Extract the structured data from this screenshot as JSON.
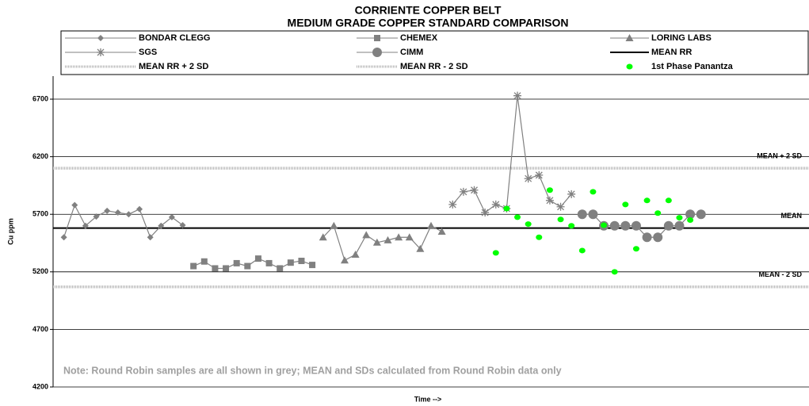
{
  "chart_data": {
    "type": "line",
    "title": "CORRIENTE COPPER BELT",
    "subtitle": "MEDIUM GRADE COPPER STANDARD COMPARISON",
    "x_label": "Time -->",
    "y_label": "Cu ppm",
    "note": "Note: Round Robin samples are all shown in grey; MEAN and SDs calculated from Round Robin data only",
    "xlim": [
      -1,
      69
    ],
    "ylim": [
      4200,
      6900
    ],
    "yticks": [
      4200,
      4700,
      5200,
      5700,
      6200,
      6700
    ],
    "grid": true,
    "series": [
      {
        "name": "BONDAR CLEGG",
        "color": "#808080",
        "marker": "diamond",
        "line": true,
        "x": [
          0,
          1,
          2,
          3,
          4,
          5,
          6,
          7,
          8,
          9,
          10,
          11
        ],
        "values": [
          5500,
          5780,
          5600,
          5680,
          5730,
          5715,
          5700,
          5745,
          5500,
          5600,
          5675,
          5605
        ]
      },
      {
        "name": "CHEMEX",
        "color": "#808080",
        "marker": "square",
        "line": true,
        "x": [
          12,
          13,
          14,
          15,
          16,
          17,
          18,
          19,
          20,
          21,
          22,
          23
        ],
        "values": [
          5250,
          5290,
          5230,
          5230,
          5275,
          5250,
          5315,
          5275,
          5230,
          5280,
          5295,
          5260
        ]
      },
      {
        "name": "LORING LABS",
        "color": "#808080",
        "marker": "triangle",
        "line": true,
        "x": [
          24,
          25,
          26,
          27,
          28,
          29,
          30,
          31,
          32,
          33,
          34,
          35
        ],
        "values": [
          5500,
          5600,
          5300,
          5350,
          5520,
          5455,
          5475,
          5500,
          5500,
          5400,
          5600,
          5550
        ]
      },
      {
        "name": "SGS",
        "color": "#808080",
        "marker": "star",
        "line": true,
        "x": [
          36,
          37,
          38,
          39,
          40,
          41,
          42,
          43,
          44,
          45,
          46,
          47
        ],
        "values": [
          5785,
          5895,
          5910,
          5715,
          5785,
          5750,
          6730,
          6010,
          6040,
          5820,
          5765,
          5875
        ]
      },
      {
        "name": "CIMM",
        "color": "#808080",
        "marker": "circle",
        "line": true,
        "x": [
          48,
          49,
          50,
          51,
          52,
          53,
          54,
          55,
          56,
          57,
          58,
          59
        ],
        "values": [
          5700,
          5700,
          5600,
          5600,
          5600,
          5600,
          5500,
          5500,
          5600,
          5600,
          5700,
          5700
        ]
      },
      {
        "name": "MEAN RR",
        "color": "#000000",
        "hline": 5580,
        "style": "solid",
        "line_label": "MEAN"
      },
      {
        "name": "MEAN RR + 2 SD",
        "color": "#b4b4b4",
        "hline": 6100,
        "style": "dotted",
        "line_label": "MEAN  + 2 SD"
      },
      {
        "name": "MEAN RR - 2 SD",
        "color": "#b4b4b4",
        "hline": 5070,
        "style": "dotted",
        "line_label": "MEAN  - 2 SD"
      },
      {
        "name": "1st Phase Panantza",
        "color": "#00ff00",
        "marker": "dot",
        "line": false,
        "x": [
          40,
          41,
          42,
          43,
          44,
          45,
          46,
          47,
          48,
          49,
          50,
          51,
          52,
          53,
          54,
          55,
          56,
          57,
          58
        ],
        "values": [
          5365,
          5750,
          5675,
          5615,
          5500,
          5910,
          5655,
          5600,
          5385,
          5895,
          5605,
          5200,
          5785,
          5400,
          5820,
          5710,
          5820,
          5670,
          5650
        ]
      }
    ]
  }
}
